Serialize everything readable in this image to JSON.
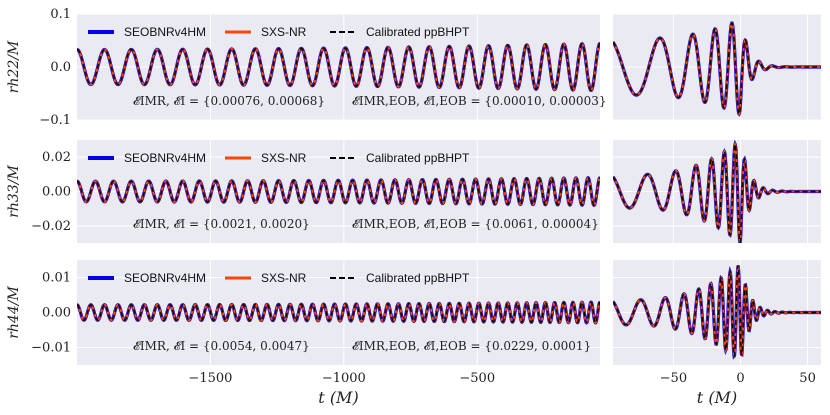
{
  "chart_data": {
    "type": "line",
    "legend": {
      "placement": "top",
      "entries": [
        {
          "label": "SEOBNRv4HM",
          "color": "#0000ee",
          "style": "solid"
        },
        {
          "label": "SXS-NR",
          "color": "#ff4500",
          "style": "solid"
        },
        {
          "label": "Calibrated ppBHPT",
          "color": "#000000",
          "style": "dashed"
        }
      ]
    },
    "left_x": {
      "label": "t (M)",
      "lim": [
        -2000,
        -40
      ],
      "ticks": [
        -1500,
        -1000,
        -500
      ],
      "tick_labels": [
        "−1500",
        "−1000",
        "−500"
      ]
    },
    "right_x": {
      "label": "t (M)",
      "lim": [
        -95,
        60
      ],
      "ticks": [
        -50,
        0,
        50
      ],
      "tick_labels": [
        "−50",
        "0",
        "50"
      ]
    },
    "grid": true,
    "rows": [
      {
        "ylabel": "rh22/M",
        "ylim": [
          -0.1,
          0.1
        ],
        "yticks": [
          -0.1,
          0.0,
          0.1
        ],
        "ytick_labels": [
          "−0.1",
          "0.0",
          "0.1"
        ],
        "errors_left": "𝓔IMR, 𝓔I = {0.00076, 0.00068}",
        "errors_right": "𝓔IMR,EOB, 𝓔I,EOB = {0.00010, 0.00003}",
        "inspiral_amplitude": 0.033,
        "peak_amplitude": 0.09,
        "cycles_left": 24,
        "ringdown_period": 10
      },
      {
        "ylabel": "rh33/M",
        "ylim": [
          -0.03,
          0.03
        ],
        "yticks": [
          -0.02,
          0.0,
          0.02
        ],
        "ytick_labels": [
          "−0.02",
          "0.00",
          "0.02"
        ],
        "errors_left": "𝓔IMR, 𝓔I = {0.0021, 0.0020}",
        "errors_right": "𝓔IMR,EOB, 𝓔I,EOB = {0.0061, 0.00004}",
        "inspiral_amplitude": 0.006,
        "peak_amplitude": 0.03,
        "cycles_left": 36,
        "ringdown_period": 7
      },
      {
        "ylabel": "rh44/M",
        "ylim": [
          -0.015,
          0.015
        ],
        "yticks": [
          -0.01,
          0.0,
          0.01
        ],
        "ytick_labels": [
          "−0.01",
          "0.00",
          "0.01"
        ],
        "errors_left": "𝓔IMR, 𝓔I = {0.0054, 0.0047}",
        "errors_right": "𝓔IMR,EOB, 𝓔I,EOB = {0.0229, 0.0001}",
        "inspiral_amplitude": 0.0022,
        "peak_amplitude": 0.014,
        "cycles_left": 48,
        "ringdown_period": 5.5
      }
    ]
  }
}
